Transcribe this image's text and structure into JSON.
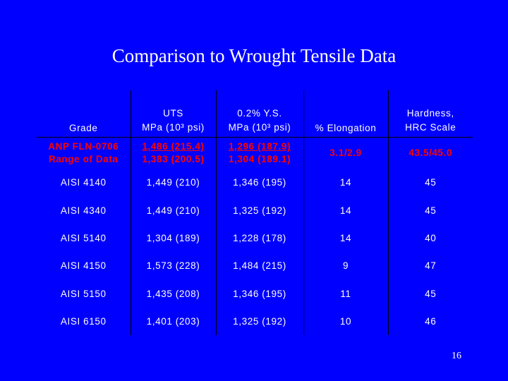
{
  "title": "Comparison to Wrought Tensile Data",
  "headers": {
    "grade": "Grade",
    "uts_line1": "UTS",
    "uts_line2": "MPa (10³ psi)",
    "ys_line1": "0.2% Y.S.",
    "ys_line2": "MPa (10³ psi)",
    "elongation": "% Elongation",
    "hardness_line1": "Hardness,",
    "hardness_line2": "HRC Scale"
  },
  "range_row": {
    "grade_line1": "ANP FLN-0706",
    "grade_line2": "Range of Data",
    "uts_line1": "1,486 (215.4)",
    "uts_line2": "1,383 (200.5)",
    "ys_line1": "1,296 (187.9)",
    "ys_line2": "1,304 (189.1)",
    "elongation": "3.1/2.9",
    "hardness": "43.5/45.0",
    "color": "#ff0000"
  },
  "rows": [
    {
      "grade": "AISI 4140",
      "uts": "1,449 (210)",
      "ys": "1,346 (195)",
      "elongation": "14",
      "hardness": "45"
    },
    {
      "grade": "AISI 4340",
      "uts": "1,449 (210)",
      "ys": "1,325 (192)",
      "elongation": "14",
      "hardness": "45"
    },
    {
      "grade": "AISI 5140",
      "uts": "1,304 (189)",
      "ys": "1,228 (178)",
      "elongation": "14",
      "hardness": "40"
    },
    {
      "grade": "AISI 4150",
      "uts": "1,573 (228)",
      "ys": "1,484 (215)",
      "elongation": "9",
      "hardness": "47"
    },
    {
      "grade": "AISI 5150",
      "uts": "1,435 (208)",
      "ys": "1,346 (195)",
      "elongation": "11",
      "hardness": "45"
    },
    {
      "grade": "AISI 6150",
      "uts": "1,401 (203)",
      "ys": "1,325 (192)",
      "elongation": "10",
      "hardness": "46"
    }
  ],
  "page_number": "16",
  "colors": {
    "background": "#0000ff",
    "text": "#ffffff",
    "grid": "#000000"
  }
}
